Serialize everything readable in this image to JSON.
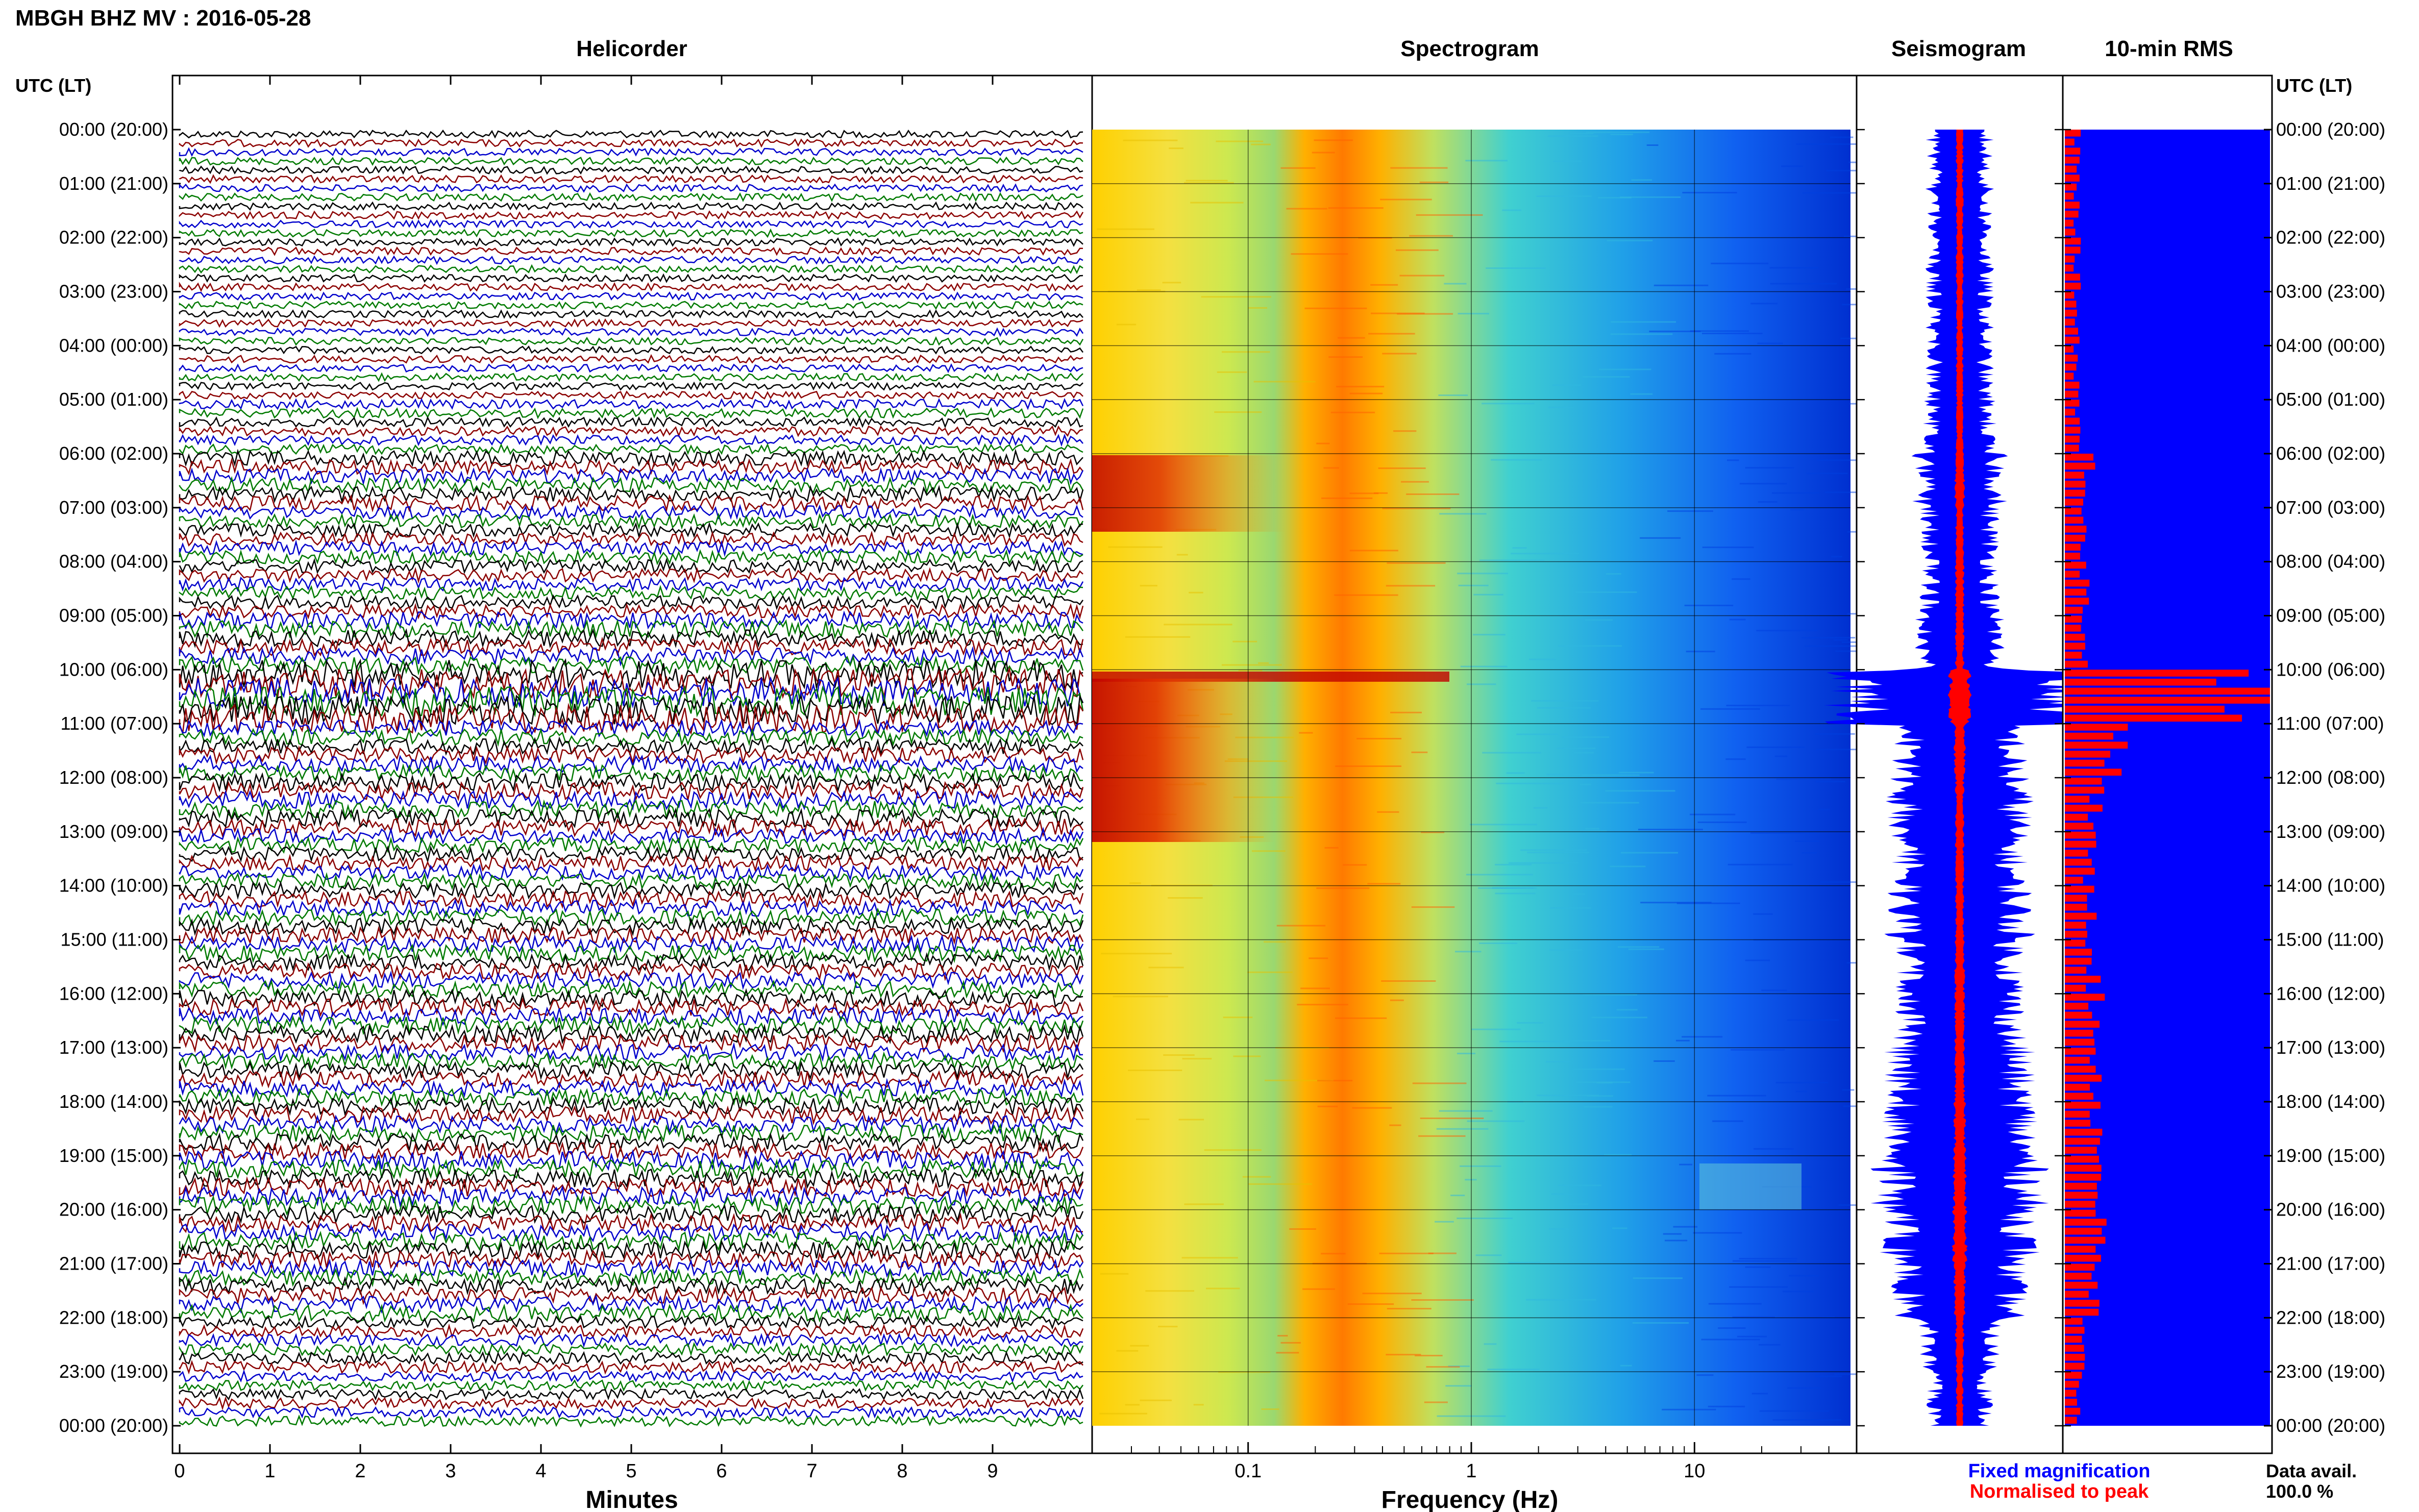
{
  "header": {
    "title": "MBGH BHZ MV : 2016-05-28"
  },
  "panels": {
    "helicorder": {
      "title": "Helicorder",
      "xlabel": "Minutes"
    },
    "spectrogram": {
      "title": "Spectrogram",
      "xlabel": "Frequency (Hz)"
    },
    "seismogram": {
      "title": "Seismogram"
    },
    "rms": {
      "title": "10-min RMS"
    }
  },
  "axis": {
    "left_label": "UTC (LT)",
    "right_label": "UTC (LT)"
  },
  "legend": {
    "fixed": "Fixed magnification",
    "normalised": "Normalised to peak"
  },
  "availability": {
    "label": "Data avail.",
    "value": "100.0 %"
  },
  "colors": {
    "trace_black": "#000000",
    "trace_red": "#8b0000",
    "trace_blue": "#0000cc",
    "trace_green": "#007a00",
    "fixed": "#0000ff",
    "normalised": "#ff0000"
  },
  "chart_data": [
    {
      "type": "line",
      "title": "Helicorder",
      "xlabel": "Minutes",
      "ylabel": "UTC (LT)",
      "x_ticks": [
        "0",
        "1",
        "2",
        "3",
        "4",
        "5",
        "6",
        "7",
        "8",
        "9"
      ],
      "xlim": [
        0,
        10
      ],
      "y_ticks": [
        "00:00 (20:00)",
        "01:00 (21:00)",
        "02:00 (22:00)",
        "03:00 (23:00)",
        "04:00 (00:00)",
        "05:00 (01:00)",
        "06:00 (02:00)",
        "07:00 (03:00)",
        "08:00 (04:00)",
        "09:00 (05:00)",
        "10:00 (06:00)",
        "11:00 (07:00)",
        "12:00 (08:00)",
        "13:00 (09:00)",
        "14:00 (10:00)",
        "15:00 (11:00)",
        "16:00 (12:00)",
        "17:00 (13:00)",
        "18:00 (14:00)",
        "19:00 (15:00)",
        "20:00 (16:00)",
        "21:00 (17:00)",
        "22:00 (18:00)",
        "23:00 (19:00)",
        "00:00 (20:00)"
      ],
      "series": [
        {
          "name": "trace",
          "values_per_hour_amplitude": [
            1,
            1,
            1,
            1,
            1,
            1.3,
            2,
            1.8,
            1.8,
            2.3,
            4,
            2.2,
            2.4,
            2,
            2.2,
            2.2,
            2.3,
            2.2,
            2.3,
            2.5,
            2.4,
            2.2,
            1.6,
            1.4
          ]
        }
      ]
    },
    {
      "type": "heatmap",
      "title": "Spectrogram",
      "xlabel": "Frequency (Hz)",
      "x_scale": "log",
      "x_ticks": [
        "0.1",
        "1",
        "10"
      ],
      "xlim": [
        0.02,
        50
      ],
      "ylim_hours": [
        0,
        24
      ]
    },
    {
      "type": "line",
      "title": "Seismogram",
      "series": [
        {
          "name": "Fixed magnification",
          "envelope_per_hour": [
            0.25,
            0.25,
            0.25,
            0.25,
            0.25,
            0.27,
            0.35,
            0.3,
            0.3,
            0.35,
            1.0,
            0.5,
            0.55,
            0.5,
            0.55,
            0.5,
            0.5,
            0.55,
            0.6,
            0.65,
            0.6,
            0.5,
            0.3,
            0.25
          ]
        },
        {
          "name": "Normalised to peak",
          "envelope_per_hour": [
            0.05,
            0.05,
            0.05,
            0.05,
            0.05,
            0.05,
            0.07,
            0.06,
            0.06,
            0.06,
            0.15,
            0.08,
            0.06,
            0.06,
            0.06,
            0.07,
            0.07,
            0.07,
            0.08,
            0.09,
            0.1,
            0.08,
            0.06,
            0.05
          ]
        }
      ]
    },
    {
      "type": "bar",
      "title": "10-min RMS",
      "series": [
        {
          "name": "Fixed magnification",
          "values": [
            1
          ]
        },
        {
          "name": "Normalised to peak",
          "values_per_hour": [
            0.06,
            0.06,
            0.06,
            0.06,
            0.06,
            0.07,
            0.12,
            0.1,
            0.1,
            0.1,
            1.0,
            0.25,
            0.15,
            0.12,
            0.14,
            0.14,
            0.15,
            0.16,
            0.16,
            0.18,
            0.16,
            0.14,
            0.08,
            0.07
          ]
        }
      ]
    }
  ]
}
